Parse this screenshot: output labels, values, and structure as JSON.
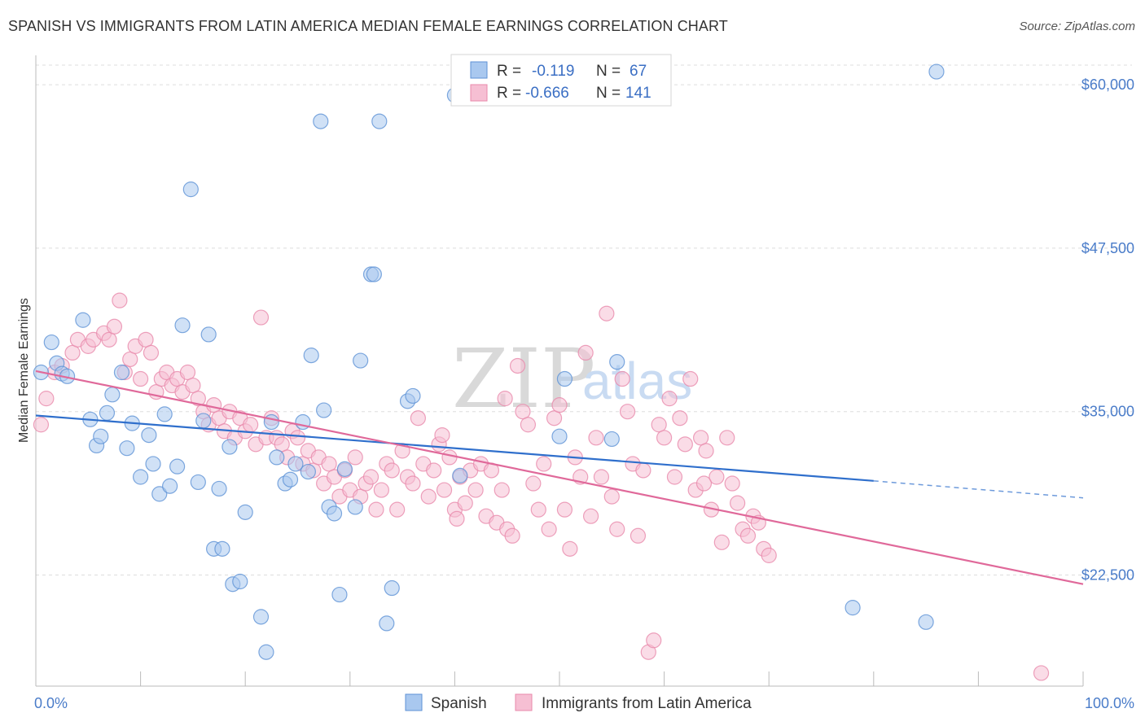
{
  "title": "SPANISH VS IMMIGRANTS FROM LATIN AMERICA MEDIAN FEMALE EARNINGS CORRELATION CHART",
  "source": "Source: ZipAtlas.com",
  "watermark": {
    "zip": "ZIP",
    "atlas": "atlas"
  },
  "colors": {
    "spanish_fill": "#a9c8ef",
    "spanish_stroke": "#5e92d6",
    "spanish_line": "#2f6fcc",
    "latin_fill": "#f6bfd3",
    "latin_stroke": "#e88aab",
    "latin_line": "#e0699a",
    "axis_text": "#4a7cc9",
    "grid": "#dddddd"
  },
  "legend": {
    "rows": [
      {
        "r_label": "R =",
        "r_value": "-0.119",
        "n_label": "N =",
        "n_value": "67"
      },
      {
        "r_label": "R =",
        "r_value": "-0.666",
        "n_label": "N =",
        "n_value": "141"
      }
    ]
  },
  "chart_data": {
    "type": "scatter",
    "xlabel": "",
    "ylabel": "Median Female Earnings",
    "xlim": [
      0,
      100
    ],
    "ylim": [
      14000,
      62000
    ],
    "x_tick_labels": [
      "0.0%",
      "100.0%"
    ],
    "y_ticks": [
      22500,
      35000,
      47500,
      60000
    ],
    "y_tick_labels": [
      "$22,500",
      "$35,000",
      "$47,500",
      "$60,000"
    ],
    "grid": true,
    "legend_position": "top-center",
    "series": [
      {
        "name": "Spanish",
        "trend": {
          "x0": 0,
          "y0": 34700,
          "x1": 80,
          "y1": 29700,
          "dash_to_x": 100,
          "dash_to_y": 28400
        },
        "points": [
          [
            1.5,
            40300
          ],
          [
            2.0,
            38700
          ],
          [
            2.5,
            37900
          ],
          [
            3.0,
            37700
          ],
          [
            4.5,
            42000
          ],
          [
            5.2,
            34400
          ],
          [
            5.8,
            32400
          ],
          [
            6.2,
            33100
          ],
          [
            6.8,
            34900
          ],
          [
            7.3,
            36300
          ],
          [
            8.2,
            38000
          ],
          [
            8.7,
            32200
          ],
          [
            9.2,
            34100
          ],
          [
            10.0,
            30000
          ],
          [
            10.8,
            33200
          ],
          [
            11.2,
            31000
          ],
          [
            11.8,
            28700
          ],
          [
            12.3,
            34800
          ],
          [
            12.8,
            29300
          ],
          [
            13.5,
            30800
          ],
          [
            14.0,
            41600
          ],
          [
            14.8,
            52000
          ],
          [
            15.5,
            29600
          ],
          [
            16.0,
            34300
          ],
          [
            16.5,
            40900
          ],
          [
            17.0,
            24500
          ],
          [
            17.5,
            29100
          ],
          [
            17.8,
            24500
          ],
          [
            18.5,
            32300
          ],
          [
            18.8,
            21800
          ],
          [
            19.5,
            22000
          ],
          [
            20.0,
            27300
          ],
          [
            21.5,
            19300
          ],
          [
            22.0,
            16600
          ],
          [
            22.5,
            34200
          ],
          [
            23.0,
            31500
          ],
          [
            23.8,
            29500
          ],
          [
            24.3,
            29800
          ],
          [
            24.8,
            31000
          ],
          [
            25.5,
            34200
          ],
          [
            26.0,
            30400
          ],
          [
            26.3,
            39300
          ],
          [
            27.5,
            35100
          ],
          [
            28.0,
            27700
          ],
          [
            28.5,
            27200
          ],
          [
            29.0,
            21000
          ],
          [
            27.2,
            57200
          ],
          [
            29.5,
            30600
          ],
          [
            30.5,
            27700
          ],
          [
            31.0,
            38900
          ],
          [
            32.0,
            45500
          ],
          [
            32.3,
            45500
          ],
          [
            32.8,
            57200
          ],
          [
            33.5,
            18800
          ],
          [
            34.0,
            21500
          ],
          [
            35.5,
            35800
          ],
          [
            36.0,
            36200
          ],
          [
            40.0,
            59200
          ],
          [
            40.5,
            30100
          ],
          [
            50.0,
            33100
          ],
          [
            50.5,
            37500
          ],
          [
            55.0,
            32900
          ],
          [
            55.5,
            38800
          ],
          [
            78.0,
            20000
          ],
          [
            85.0,
            18900
          ],
          [
            86.0,
            61000
          ],
          [
            0.5,
            38000
          ]
        ]
      },
      {
        "name": "Immigrants from Latin America",
        "trend": {
          "x0": 0,
          "y0": 38100,
          "x1": 100,
          "y1": 21800
        },
        "points": [
          [
            0.5,
            34000
          ],
          [
            1.0,
            36000
          ],
          [
            1.8,
            38000
          ],
          [
            2.5,
            38500
          ],
          [
            3.5,
            39500
          ],
          [
            4.0,
            40500
          ],
          [
            5.0,
            40000
          ],
          [
            5.5,
            40500
          ],
          [
            6.5,
            41000
          ],
          [
            7.0,
            40500
          ],
          [
            7.5,
            41500
          ],
          [
            8.0,
            43500
          ],
          [
            8.5,
            38000
          ],
          [
            9.0,
            39000
          ],
          [
            9.5,
            40000
          ],
          [
            10.0,
            37500
          ],
          [
            10.5,
            40500
          ],
          [
            11.0,
            39500
          ],
          [
            11.5,
            36500
          ],
          [
            12.0,
            37500
          ],
          [
            12.5,
            38000
          ],
          [
            13.0,
            37000
          ],
          [
            13.5,
            37500
          ],
          [
            14.0,
            36500
          ],
          [
            14.5,
            38000
          ],
          [
            15.0,
            37000
          ],
          [
            15.5,
            36000
          ],
          [
            16.0,
            35000
          ],
          [
            16.5,
            34000
          ],
          [
            17.0,
            35500
          ],
          [
            17.5,
            34500
          ],
          [
            18.0,
            33500
          ],
          [
            18.5,
            35000
          ],
          [
            19.0,
            33000
          ],
          [
            19.5,
            34500
          ],
          [
            20.0,
            33500
          ],
          [
            20.5,
            34000
          ],
          [
            21.0,
            32500
          ],
          [
            21.5,
            42200
          ],
          [
            22.0,
            33000
          ],
          [
            22.5,
            34500
          ],
          [
            23.0,
            33000
          ],
          [
            23.5,
            32500
          ],
          [
            24.0,
            31500
          ],
          [
            24.5,
            33500
          ],
          [
            25.0,
            33000
          ],
          [
            25.5,
            31000
          ],
          [
            26.0,
            32000
          ],
          [
            26.5,
            30500
          ],
          [
            27.0,
            31500
          ],
          [
            27.5,
            29500
          ],
          [
            28.0,
            31000
          ],
          [
            28.5,
            30000
          ],
          [
            29.0,
            28500
          ],
          [
            29.5,
            30500
          ],
          [
            30.0,
            29000
          ],
          [
            30.5,
            31500
          ],
          [
            31.0,
            28500
          ],
          [
            31.5,
            29500
          ],
          [
            32.0,
            30000
          ],
          [
            32.5,
            27500
          ],
          [
            33.0,
            29000
          ],
          [
            33.5,
            31000
          ],
          [
            34.0,
            30500
          ],
          [
            34.5,
            27500
          ],
          [
            35.0,
            32000
          ],
          [
            35.5,
            30000
          ],
          [
            36.0,
            29500
          ],
          [
            36.5,
            34500
          ],
          [
            37.0,
            31000
          ],
          [
            37.5,
            28500
          ],
          [
            38.0,
            30500
          ],
          [
            38.5,
            32500
          ],
          [
            39.0,
            29000
          ],
          [
            39.5,
            31500
          ],
          [
            40.0,
            27500
          ],
          [
            40.5,
            30000
          ],
          [
            41.0,
            28000
          ],
          [
            41.5,
            30500
          ],
          [
            42.0,
            29000
          ],
          [
            42.5,
            31000
          ],
          [
            43.0,
            27000
          ],
          [
            43.5,
            30500
          ],
          [
            44.0,
            26500
          ],
          [
            44.5,
            29000
          ],
          [
            45.0,
            26000
          ],
          [
            45.5,
            25500
          ],
          [
            46.0,
            38500
          ],
          [
            46.5,
            35000
          ],
          [
            47.0,
            34000
          ],
          [
            47.5,
            29500
          ],
          [
            48.0,
            27500
          ],
          [
            48.5,
            31000
          ],
          [
            49.0,
            26000
          ],
          [
            49.5,
            34500
          ],
          [
            50.0,
            35500
          ],
          [
            50.5,
            27500
          ],
          [
            51.0,
            24500
          ],
          [
            51.5,
            31500
          ],
          [
            52.0,
            30000
          ],
          [
            52.5,
            39500
          ],
          [
            53.0,
            27000
          ],
          [
            53.5,
            33000
          ],
          [
            54.0,
            30000
          ],
          [
            54.5,
            42500
          ],
          [
            55.0,
            28500
          ],
          [
            55.5,
            26000
          ],
          [
            56.0,
            37500
          ],
          [
            56.5,
            35000
          ],
          [
            57.0,
            31000
          ],
          [
            57.5,
            25500
          ],
          [
            58.0,
            30500
          ],
          [
            58.5,
            16600
          ],
          [
            59.0,
            17500
          ],
          [
            59.5,
            34000
          ],
          [
            60.0,
            33000
          ],
          [
            60.5,
            36000
          ],
          [
            61.0,
            30000
          ],
          [
            61.5,
            34500
          ],
          [
            62.0,
            32500
          ],
          [
            62.5,
            37500
          ],
          [
            63.0,
            29000
          ],
          [
            63.5,
            33000
          ],
          [
            64.0,
            32000
          ],
          [
            64.5,
            27500
          ],
          [
            65.0,
            30000
          ],
          [
            65.5,
            25000
          ],
          [
            66.0,
            33000
          ],
          [
            66.5,
            29500
          ],
          [
            67.0,
            28000
          ],
          [
            67.5,
            26000
          ],
          [
            68.0,
            25500
          ],
          [
            68.5,
            27000
          ],
          [
            69.0,
            26500
          ],
          [
            69.5,
            24500
          ],
          [
            70.0,
            24000
          ],
          [
            96.0,
            15000
          ],
          [
            63.8,
            29500
          ],
          [
            44.8,
            36000
          ],
          [
            40.2,
            26800
          ],
          [
            38.8,
            33200
          ]
        ]
      }
    ]
  },
  "bottom_legend": [
    {
      "label": "Spanish"
    },
    {
      "label": "Immigrants from Latin America"
    }
  ]
}
